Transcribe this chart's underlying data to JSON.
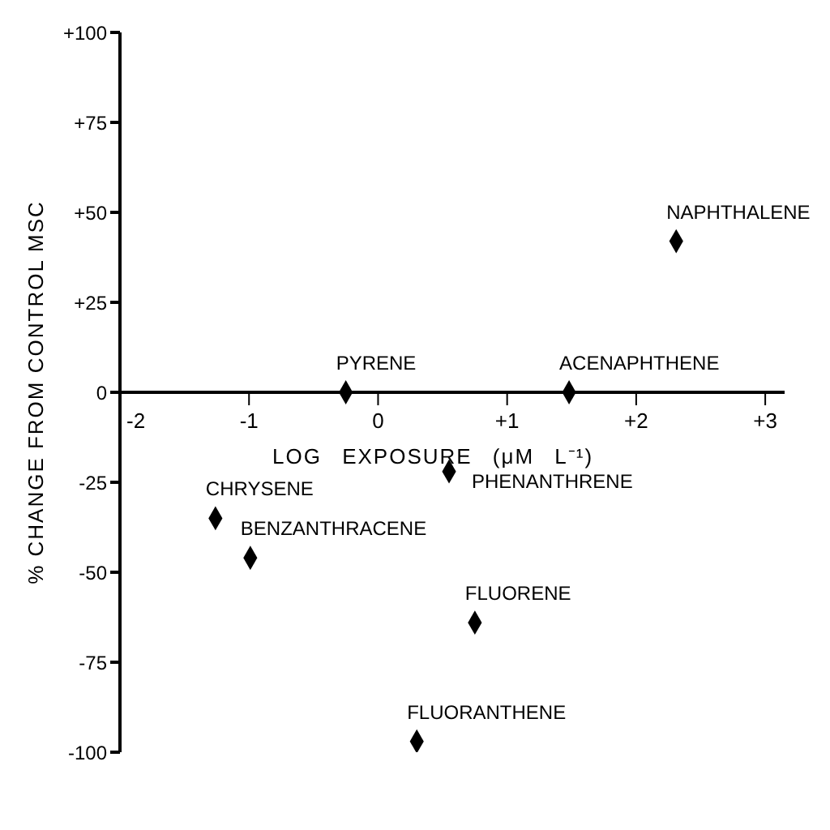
{
  "chart_data": {
    "type": "scatter",
    "xlabel": "LOG EXPOSURE (μM L⁻¹)",
    "ylabel": "% CHANGE FROM CONTROL MSC",
    "xlim": [
      -2,
      3.15
    ],
    "ylim": [
      -100,
      100
    ],
    "xticks": [
      -2,
      -1,
      0,
      {
        "value": 1,
        "label": "+1"
      },
      {
        "value": 2,
        "label": "+2"
      },
      {
        "value": 3,
        "label": "+3"
      }
    ],
    "yticks": [
      {
        "value": 100,
        "label": "+100"
      },
      {
        "value": 75,
        "label": "+75"
      },
      {
        "value": 50,
        "label": "+50"
      },
      {
        "value": 25,
        "label": "+25"
      },
      0,
      -25,
      -50,
      -75,
      -100
    ],
    "series": [
      {
        "color": "#000000",
        "x": [
          2.31,
          -0.25,
          1.48,
          0.55,
          -1.26,
          -0.99,
          0.75,
          0.3
        ],
        "values": [
          42,
          0,
          0,
          -22,
          -35,
          -46,
          -64,
          -97
        ]
      }
    ],
    "marker": "diamond",
    "grid": false,
    "legend": false,
    "annotations": [
      {
        "text": "NAPHTHALENE",
        "x": 2.31,
        "y": 42
      },
      {
        "text": "PYRENE",
        "x": -0.25,
        "y": 0
      },
      {
        "text": "ACENAPHTHENE",
        "x": 1.48,
        "y": 0
      },
      {
        "text": "PHENANTHRENE",
        "x": 0.55,
        "y": -22
      },
      {
        "text": "CHRYSENE",
        "x": -1.26,
        "y": -35
      },
      {
        "text": "BENZANTHRACENE",
        "x": -0.99,
        "y": -46
      },
      {
        "text": "FLUORENE",
        "x": 0.75,
        "y": -64
      },
      {
        "text": "FLUORANTHENE",
        "x": 0.3,
        "y": -97
      }
    ]
  }
}
